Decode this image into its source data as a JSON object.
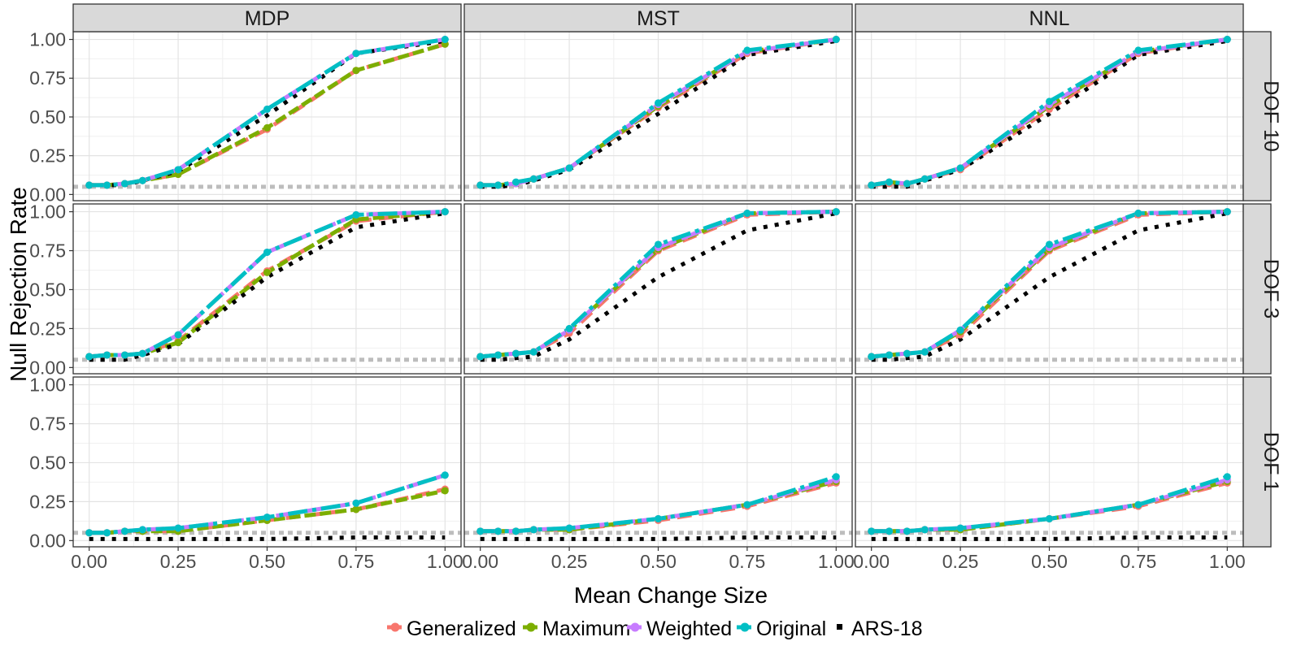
{
  "chart_data": {
    "type": "line",
    "xlabel": "Mean Change Size",
    "ylabel": "Null Rejection Rate",
    "xlim": [
      0,
      1
    ],
    "ylim": [
      0,
      1.05
    ],
    "x_ticks": [
      "0.00",
      "0.25",
      "0.50",
      "0.75",
      "1.00"
    ],
    "y_ticks": [
      "0.00",
      "0.25",
      "0.50",
      "0.75",
      "1.00"
    ],
    "reference_line": 0.05,
    "grid": true,
    "legend_position": "bottom",
    "column_facets": [
      "MDP",
      "MST",
      "NNL"
    ],
    "row_facets": [
      "DOF 10",
      "DOF 3",
      "DOF 1"
    ],
    "x": [
      0,
      0.05,
      0.1,
      0.15,
      0.25,
      0.5,
      0.75,
      1.0
    ],
    "series_styles": [
      {
        "name": "Generalized",
        "color": "#F8766D",
        "dash": "18 9",
        "marker": "point"
      },
      {
        "name": "Maximum",
        "color": "#7CAE00",
        "dash": "14 5",
        "marker": "point"
      },
      {
        "name": "Weighted",
        "color": "#C77CFF",
        "dash": "26 7",
        "marker": "point"
      },
      {
        "name": "Original",
        "color": "#00BFC4",
        "dash": "24 6 5 6",
        "marker": "point"
      },
      {
        "name": "ARS-18",
        "color": "#000000",
        "dash": "5 9",
        "marker": "none"
      }
    ],
    "panels": [
      {
        "row": "DOF 10",
        "col": "MDP",
        "series": [
          {
            "name": "Generalized",
            "values": [
              0.06,
              0.06,
              0.07,
              0.09,
              0.13,
              0.42,
              0.8,
              0.97
            ]
          },
          {
            "name": "Maximum",
            "values": [
              0.06,
              0.06,
              0.07,
              0.09,
              0.13,
              0.43,
              0.8,
              0.97
            ]
          },
          {
            "name": "Weighted",
            "values": [
              0.06,
              0.06,
              0.07,
              0.09,
              0.16,
              0.55,
              0.91,
              1.0
            ]
          },
          {
            "name": "Original",
            "values": [
              0.06,
              0.06,
              0.07,
              0.09,
              0.16,
              0.55,
              0.91,
              1.0
            ]
          },
          {
            "name": "ARS-18",
            "values": [
              0.06,
              0.06,
              0.06,
              0.09,
              0.15,
              0.51,
              0.91,
              0.99
            ]
          }
        ]
      },
      {
        "row": "DOF 10",
        "col": "MST",
        "series": [
          {
            "name": "Generalized",
            "values": [
              0.06,
              0.06,
              0.07,
              0.1,
              0.17,
              0.56,
              0.91,
              1.0
            ]
          },
          {
            "name": "Maximum",
            "values": [
              0.06,
              0.06,
              0.07,
              0.1,
              0.17,
              0.57,
              0.92,
              1.0
            ]
          },
          {
            "name": "Weighted",
            "values": [
              0.06,
              0.06,
              0.07,
              0.1,
              0.17,
              0.58,
              0.92,
              1.0
            ]
          },
          {
            "name": "Original",
            "values": [
              0.06,
              0.06,
              0.08,
              0.1,
              0.17,
              0.59,
              0.93,
              1.0
            ]
          },
          {
            "name": "ARS-18",
            "values": [
              0.05,
              0.05,
              0.06,
              0.09,
              0.16,
              0.52,
              0.9,
              0.99
            ]
          }
        ]
      },
      {
        "row": "DOF 10",
        "col": "NNL",
        "series": [
          {
            "name": "Generalized",
            "values": [
              0.06,
              0.07,
              0.07,
              0.1,
              0.16,
              0.55,
              0.91,
              1.0
            ]
          },
          {
            "name": "Maximum",
            "values": [
              0.06,
              0.08,
              0.07,
              0.1,
              0.17,
              0.57,
              0.92,
              1.0
            ]
          },
          {
            "name": "Weighted",
            "values": [
              0.06,
              0.08,
              0.07,
              0.1,
              0.17,
              0.58,
              0.92,
              1.0
            ]
          },
          {
            "name": "Original",
            "values": [
              0.06,
              0.08,
              0.07,
              0.1,
              0.17,
              0.6,
              0.93,
              1.0
            ]
          },
          {
            "name": "ARS-18",
            "values": [
              0.05,
              0.05,
              0.05,
              0.09,
              0.16,
              0.52,
              0.9,
              0.99
            ]
          }
        ]
      },
      {
        "row": "DOF 3",
        "col": "MDP",
        "series": [
          {
            "name": "Generalized",
            "values": [
              0.07,
              0.08,
              0.08,
              0.09,
              0.17,
              0.62,
              0.94,
              1.0
            ]
          },
          {
            "name": "Maximum",
            "values": [
              0.07,
              0.08,
              0.08,
              0.09,
              0.16,
              0.61,
              0.95,
              1.0
            ]
          },
          {
            "name": "Weighted",
            "values": [
              0.07,
              0.08,
              0.08,
              0.09,
              0.21,
              0.74,
              0.98,
              1.0
            ]
          },
          {
            "name": "Original",
            "values": [
              0.07,
              0.08,
              0.08,
              0.09,
              0.21,
              0.74,
              0.98,
              1.0
            ]
          },
          {
            "name": "ARS-18",
            "values": [
              0.05,
              0.05,
              0.05,
              0.08,
              0.15,
              0.58,
              0.9,
              0.99
            ]
          }
        ]
      },
      {
        "row": "DOF 3",
        "col": "MST",
        "series": [
          {
            "name": "Generalized",
            "values": [
              0.07,
              0.08,
              0.09,
              0.1,
              0.22,
              0.75,
              0.98,
              1.0
            ]
          },
          {
            "name": "Maximum",
            "values": [
              0.07,
              0.08,
              0.09,
              0.1,
              0.24,
              0.76,
              0.99,
              1.0
            ]
          },
          {
            "name": "Weighted",
            "values": [
              0.07,
              0.08,
              0.09,
              0.1,
              0.24,
              0.77,
              0.99,
              1.0
            ]
          },
          {
            "name": "Original",
            "values": [
              0.07,
              0.08,
              0.09,
              0.1,
              0.25,
              0.79,
              0.99,
              1.0
            ]
          },
          {
            "name": "ARS-18",
            "values": [
              0.05,
              0.05,
              0.06,
              0.07,
              0.18,
              0.58,
              0.88,
              0.99
            ]
          }
        ]
      },
      {
        "row": "DOF 3",
        "col": "NNL",
        "series": [
          {
            "name": "Generalized",
            "values": [
              0.07,
              0.08,
              0.09,
              0.1,
              0.21,
              0.75,
              0.98,
              1.0
            ]
          },
          {
            "name": "Maximum",
            "values": [
              0.07,
              0.08,
              0.09,
              0.1,
              0.23,
              0.76,
              0.99,
              1.0
            ]
          },
          {
            "name": "Weighted",
            "values": [
              0.07,
              0.08,
              0.09,
              0.1,
              0.24,
              0.77,
              0.99,
              1.0
            ]
          },
          {
            "name": "Original",
            "values": [
              0.07,
              0.08,
              0.09,
              0.1,
              0.24,
              0.79,
              0.99,
              1.0
            ]
          },
          {
            "name": "ARS-18",
            "values": [
              0.05,
              0.05,
              0.06,
              0.07,
              0.18,
              0.58,
              0.88,
              0.99
            ]
          }
        ]
      },
      {
        "row": "DOF 1",
        "col": "MDP",
        "series": [
          {
            "name": "Generalized",
            "values": [
              0.05,
              0.05,
              0.06,
              0.06,
              0.06,
              0.13,
              0.2,
              0.33
            ]
          },
          {
            "name": "Maximum",
            "values": [
              0.05,
              0.05,
              0.06,
              0.06,
              0.06,
              0.13,
              0.2,
              0.32
            ]
          },
          {
            "name": "Weighted",
            "values": [
              0.05,
              0.05,
              0.06,
              0.07,
              0.08,
              0.15,
              0.24,
              0.42
            ]
          },
          {
            "name": "Original",
            "values": [
              0.05,
              0.05,
              0.06,
              0.07,
              0.08,
              0.15,
              0.24,
              0.42
            ]
          },
          {
            "name": "ARS-18",
            "values": [
              0.01,
              0.01,
              0.01,
              0.01,
              0.01,
              0.01,
              0.02,
              0.02
            ]
          }
        ]
      },
      {
        "row": "DOF 1",
        "col": "MST",
        "series": [
          {
            "name": "Generalized",
            "values": [
              0.06,
              0.06,
              0.06,
              0.07,
              0.07,
              0.13,
              0.22,
              0.37
            ]
          },
          {
            "name": "Maximum",
            "values": [
              0.06,
              0.06,
              0.06,
              0.07,
              0.07,
              0.14,
              0.23,
              0.38
            ]
          },
          {
            "name": "Weighted",
            "values": [
              0.06,
              0.06,
              0.06,
              0.07,
              0.08,
              0.14,
              0.23,
              0.39
            ]
          },
          {
            "name": "Original",
            "values": [
              0.06,
              0.06,
              0.06,
              0.07,
              0.08,
              0.14,
              0.23,
              0.41
            ]
          },
          {
            "name": "ARS-18",
            "values": [
              0.01,
              0.01,
              0.01,
              0.01,
              0.01,
              0.01,
              0.02,
              0.02
            ]
          }
        ]
      },
      {
        "row": "DOF 1",
        "col": "NNL",
        "series": [
          {
            "name": "Generalized",
            "values": [
              0.06,
              0.06,
              0.06,
              0.07,
              0.07,
              0.14,
              0.22,
              0.37
            ]
          },
          {
            "name": "Maximum",
            "values": [
              0.06,
              0.06,
              0.06,
              0.07,
              0.07,
              0.14,
              0.23,
              0.38
            ]
          },
          {
            "name": "Weighted",
            "values": [
              0.06,
              0.06,
              0.06,
              0.07,
              0.08,
              0.14,
              0.23,
              0.39
            ]
          },
          {
            "name": "Original",
            "values": [
              0.06,
              0.06,
              0.06,
              0.07,
              0.08,
              0.14,
              0.23,
              0.41
            ]
          },
          {
            "name": "ARS-18",
            "values": [
              0.01,
              0.01,
              0.01,
              0.01,
              0.01,
              0.01,
              0.02,
              0.02
            ]
          }
        ]
      }
    ]
  }
}
